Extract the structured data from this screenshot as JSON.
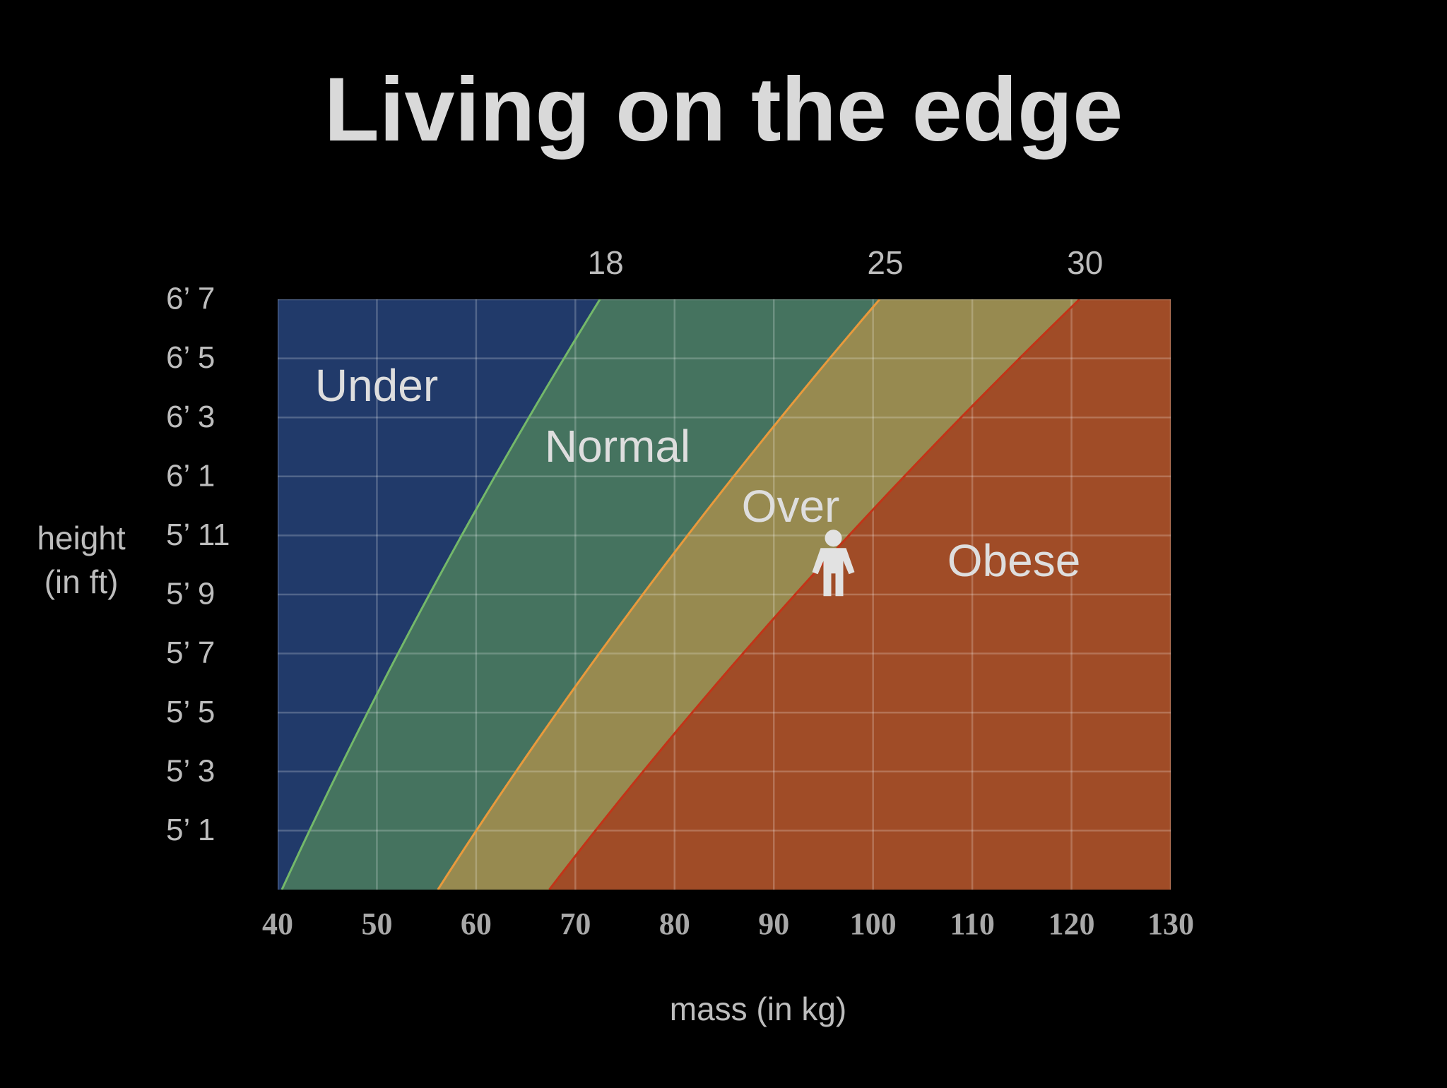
{
  "chart_data": {
    "type": "area",
    "title": "Living on the edge",
    "xlabel": "mass (in kg)",
    "ylabel": [
      "height",
      "(in ft)"
    ],
    "xlim": [
      40,
      130
    ],
    "xticks": [
      40,
      50,
      60,
      70,
      80,
      90,
      100,
      110,
      120,
      130
    ],
    "ylim": [
      59,
      79
    ],
    "yticks": [
      {
        "value": 61,
        "label": "5’ 1"
      },
      {
        "value": 63,
        "label": "5’ 3"
      },
      {
        "value": 65,
        "label": "5’ 5"
      },
      {
        "value": 67,
        "label": "5’ 7"
      },
      {
        "value": 69,
        "label": "5’ 9"
      },
      {
        "value": 71,
        "label": "5’ 11"
      },
      {
        "value": 73,
        "label": "6’ 1"
      },
      {
        "value": 75,
        "label": "6’ 3"
      },
      {
        "value": 77,
        "label": "6’ 5"
      },
      {
        "value": 79,
        "label": "6’ 7"
      }
    ],
    "grid": true,
    "boundaries": [
      {
        "bmi": 18,
        "color": "#74b86a"
      },
      {
        "bmi": 25,
        "color": "#e99a3c"
      },
      {
        "bmi": 30,
        "color": "#c23418"
      }
    ],
    "regions": [
      {
        "name": "Under",
        "color": "#213a6a"
      },
      {
        "name": "Normal",
        "color": "#45735f"
      },
      {
        "name": "Over",
        "color": "#978a50"
      },
      {
        "name": "Obese",
        "color": "#a04c27"
      }
    ],
    "marker": {
      "x": 96,
      "y": 70
    }
  }
}
